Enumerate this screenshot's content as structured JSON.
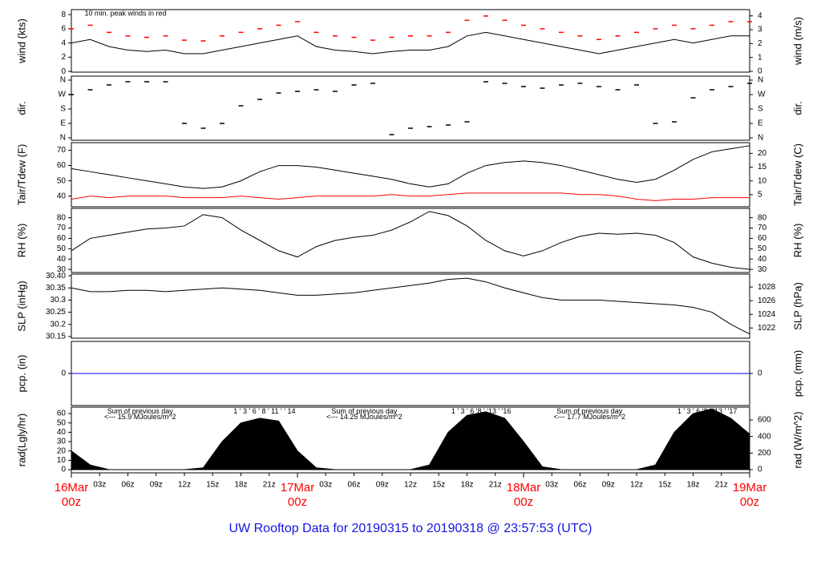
{
  "title": "UW Rooftop Data for 20190315  to  20190318 @ 23:57:53  (UTC)",
  "chart_data": [
    {
      "type": "line",
      "ylabel": "wind (kts)",
      "y2label": "wind (m/s)",
      "ylim": [
        -0.1,
        8.7
      ],
      "yticks": [
        0,
        2,
        4,
        6,
        8
      ],
      "y2lim": [
        -0.06,
        4.45
      ],
      "y2ticks": [
        0,
        1,
        2,
        3,
        4
      ],
      "annotations": [
        {
          "text": "10 min. peak winds in red",
          "x": 1.4,
          "y": 8.1,
          "color": "#ff0000"
        }
      ],
      "x": [
        0,
        2,
        4,
        6,
        8,
        10,
        12,
        14,
        16,
        18,
        20,
        22,
        24,
        26,
        28,
        30,
        32,
        34,
        36,
        38,
        40,
        42,
        44,
        46,
        48,
        50,
        52,
        54,
        56,
        58,
        60,
        62,
        64,
        66,
        68,
        70,
        72
      ],
      "series": [
        {
          "name": "wind",
          "color": "#000000",
          "marker": "line",
          "values": [
            4,
            4.5,
            3.5,
            3,
            2.8,
            3,
            2.5,
            2.5,
            3,
            3.5,
            4,
            4.5,
            5,
            3.5,
            3,
            2.8,
            2.5,
            2.8,
            3,
            3,
            3.5,
            5,
            5.5,
            5,
            4.5,
            4,
            3.5,
            3,
            2.5,
            3,
            3.5,
            4,
            4.5,
            4,
            4.5,
            5,
            5
          ]
        },
        {
          "name": "peak",
          "color": "#ff0000",
          "marker": "dash",
          "values": [
            6,
            6.5,
            5.5,
            5,
            4.8,
            5,
            4.4,
            4.3,
            5,
            5.5,
            6,
            6.5,
            7,
            5.5,
            5,
            4.8,
            4.4,
            4.8,
            5,
            5,
            5.5,
            7.2,
            7.8,
            7.2,
            6.5,
            6,
            5.5,
            5,
            4.5,
            5,
            5.5,
            6,
            6.5,
            6,
            6.5,
            7,
            7
          ]
        }
      ]
    },
    {
      "type": "scatter",
      "ylabel": "dir.",
      "y2label": "dir.",
      "ylim": [
        -15,
        385
      ],
      "yticks": [
        {
          "value": 0,
          "label": "N"
        },
        {
          "value": 90,
          "label": "E"
        },
        {
          "value": 180,
          "label": "S"
        },
        {
          "value": 270,
          "label": "W"
        },
        {
          "value": 360,
          "label": "N"
        }
      ],
      "y2lim": [
        -15,
        385
      ],
      "y2ticks": [
        {
          "value": 0,
          "label": "N"
        },
        {
          "value": 90,
          "label": "E"
        },
        {
          "value": 180,
          "label": "S"
        },
        {
          "value": 270,
          "label": "W"
        },
        {
          "value": 360,
          "label": "N"
        }
      ],
      "x": [
        0,
        2,
        4,
        6,
        8,
        10,
        12,
        14,
        16,
        18,
        20,
        22,
        24,
        26,
        28,
        30,
        32,
        34,
        36,
        38,
        40,
        42,
        44,
        46,
        48,
        50,
        52,
        54,
        56,
        58,
        60,
        62,
        64,
        66,
        68,
        70,
        72
      ],
      "series": [
        {
          "name": "direction",
          "color": "#000000",
          "values": [
            270,
            300,
            330,
            350,
            350,
            350,
            90,
            60,
            90,
            200,
            240,
            280,
            290,
            300,
            290,
            330,
            340,
            20,
            60,
            70,
            80,
            100,
            350,
            340,
            320,
            310,
            330,
            340,
            320,
            300,
            330,
            90,
            100,
            250,
            300,
            320,
            340
          ]
        }
      ]
    },
    {
      "type": "line",
      "ylabel": "Tair/Tdew (F)",
      "y2label": "Tair/Tdew (C)",
      "ylim": [
        33,
        75
      ],
      "yticks": [
        40,
        50,
        60,
        70
      ],
      "y2lim": [
        0.6,
        23.9
      ],
      "y2ticks": [
        5,
        10,
        15,
        20
      ],
      "x": [
        0,
        2,
        4,
        6,
        8,
        10,
        12,
        14,
        16,
        18,
        20,
        22,
        24,
        26,
        28,
        30,
        32,
        34,
        36,
        38,
        40,
        42,
        44,
        46,
        48,
        50,
        52,
        54,
        56,
        58,
        60,
        62,
        64,
        66,
        68,
        70,
        72
      ],
      "series": [
        {
          "name": "Tair",
          "color": "#000000",
          "marker": "line",
          "values": [
            58,
            56,
            54,
            52,
            50,
            48,
            46,
            45,
            46,
            50,
            56,
            60,
            60,
            59,
            57,
            55,
            53,
            51,
            48,
            46,
            48,
            55,
            60,
            62,
            63,
            62,
            60,
            57,
            54,
            51,
            49,
            51,
            57,
            64,
            69,
            71,
            73
          ]
        },
        {
          "name": "Tdew",
          "color": "#ff0000",
          "marker": "line",
          "values": [
            38,
            40,
            39,
            40,
            40,
            40,
            39,
            39,
            39,
            40,
            39,
            38,
            39,
            40,
            40,
            40,
            40,
            41,
            40,
            40,
            41,
            42,
            42,
            42,
            42,
            42,
            42,
            41,
            41,
            40,
            38,
            37,
            38,
            38,
            39,
            39,
            39
          ]
        }
      ]
    },
    {
      "type": "line",
      "ylabel": "RH (%)",
      "y2label": "RH (%)",
      "ylim": [
        27,
        89
      ],
      "yticks": [
        30,
        40,
        50,
        60,
        70,
        80
      ],
      "y2lim": [
        27,
        89
      ],
      "y2ticks": [
        30,
        40,
        50,
        60,
        70,
        80
      ],
      "x": [
        0,
        2,
        4,
        6,
        8,
        10,
        12,
        14,
        16,
        18,
        20,
        22,
        24,
        26,
        28,
        30,
        32,
        34,
        36,
        38,
        40,
        42,
        44,
        46,
        48,
        50,
        52,
        54,
        56,
        58,
        60,
        62,
        64,
        66,
        68,
        70,
        72
      ],
      "series": [
        {
          "name": "RH",
          "color": "#000000",
          "marker": "line",
          "values": [
            48,
            60,
            63,
            66,
            69,
            70,
            72,
            83,
            80,
            68,
            58,
            48,
            42,
            52,
            58,
            61,
            63,
            68,
            76,
            86,
            82,
            72,
            58,
            48,
            43,
            48,
            56,
            62,
            65,
            64,
            65,
            63,
            56,
            42,
            36,
            32,
            30
          ]
        }
      ]
    },
    {
      "type": "line",
      "ylabel": "SLP (inHg)",
      "y2label": "SLP (hPa)",
      "ylim": [
        30.143,
        30.407
      ],
      "yticks": [
        30.15,
        30.2,
        30.25,
        30.3,
        30.35,
        {
          "value": 30.4,
          "label": "30.40"
        }
      ],
      "y2lim": [
        1020.5,
        1029.9
      ],
      "y2ticks": [
        1022,
        1024,
        1026,
        1028
      ],
      "x": [
        0,
        2,
        4,
        6,
        8,
        10,
        12,
        14,
        16,
        18,
        20,
        22,
        24,
        26,
        28,
        30,
        32,
        34,
        36,
        38,
        40,
        42,
        44,
        46,
        48,
        50,
        52,
        54,
        56,
        58,
        60,
        62,
        64,
        66,
        68,
        70,
        72
      ],
      "series": [
        {
          "name": "SLP",
          "color": "#000000",
          "marker": "line",
          "values": [
            30.35,
            30.335,
            30.335,
            30.34,
            30.34,
            30.335,
            30.34,
            30.345,
            30.35,
            30.345,
            30.34,
            30.33,
            30.32,
            30.32,
            30.325,
            30.33,
            30.34,
            30.35,
            30.36,
            30.37,
            30.385,
            30.39,
            30.375,
            30.35,
            30.33,
            30.31,
            30.3,
            30.3,
            30.3,
            30.295,
            30.29,
            30.285,
            30.28,
            30.27,
            30.25,
            30.2,
            30.16
          ]
        }
      ]
    },
    {
      "type": "line",
      "ylabel": "pcp. (in)",
      "y2label": "pcp. (mm)",
      "ylim": [
        -1,
        1
      ],
      "yticks": [
        0
      ],
      "y2lim": [
        -1,
        1
      ],
      "y2ticks": [
        0
      ],
      "x": [
        0,
        2,
        4,
        6,
        8,
        10,
        12,
        14,
        16,
        18,
        20,
        22,
        24,
        26,
        28,
        30,
        32,
        34,
        36,
        38,
        40,
        42,
        44,
        46,
        48,
        50,
        52,
        54,
        56,
        58,
        60,
        62,
        64,
        66,
        68,
        70,
        72
      ],
      "series": [
        {
          "name": "pcp",
          "color": "#0000ff",
          "marker": "line",
          "values": [
            0,
            0,
            0,
            0,
            0,
            0,
            0,
            0,
            0,
            0,
            0,
            0,
            0,
            0,
            0,
            0,
            0,
            0,
            0,
            0,
            0,
            0,
            0,
            0,
            0,
            0,
            0,
            0,
            0,
            0,
            0,
            0,
            0,
            0,
            0,
            0,
            0
          ]
        }
      ]
    },
    {
      "type": "area",
      "ylabel": "rad(Lgly/hr)",
      "y2label": "rad (W/m^2)",
      "ylim": [
        -3.4,
        66.9
      ],
      "yticks": [
        0,
        10,
        20,
        30,
        40,
        50,
        60
      ],
      "y2lim": [
        -39,
        755
      ],
      "y2ticks": [
        0,
        200,
        400,
        600
      ],
      "annotations": [
        {
          "text": "Sum of previous day",
          "x": 7.3,
          "y": 62,
          "color": "#a020f0"
        },
        {
          "text": "<--- 15.9 MJoules/m^2",
          "x": 7.3,
          "y": 56,
          "color": "#a020f0"
        },
        {
          "text": "1 ' 3 ' 6 ' 8 ' 11 ' ' 14",
          "x": 20.5,
          "y": 62,
          "color": "#a020f0"
        },
        {
          "text": "Sum of previous day",
          "x": 31.1,
          "y": 62,
          "color": "#a020f0"
        },
        {
          "text": "<--- 14.25 MJoules/m^2",
          "x": 31.1,
          "y": 56,
          "color": "#a020f0"
        },
        {
          "text": "1 ' 3 ' 6 '8 ' '13 ' '16",
          "x": 43.5,
          "y": 62,
          "color": "#a020f0"
        },
        {
          "text": "Sum of previous day",
          "x": 55,
          "y": 62,
          "color": "#a020f0"
        },
        {
          "text": "<--- 17.7 MJoules/m^2",
          "x": 55,
          "y": 56,
          "color": "#a020f0"
        },
        {
          "text": "1 ' 3 ' 6 '8 ' '13 ' '17",
          "x": 67.5,
          "y": 62,
          "color": "#a020f0"
        }
      ],
      "x": [
        0,
        2,
        4,
        6,
        8,
        10,
        12,
        14,
        16,
        18,
        20,
        22,
        24,
        26,
        28,
        30,
        32,
        34,
        36,
        38,
        40,
        42,
        44,
        46,
        48,
        50,
        52,
        54,
        56,
        58,
        60,
        62,
        64,
        66,
        68,
        70,
        72
      ],
      "series": [
        {
          "name": "rad",
          "color": "#000000",
          "values": [
            20,
            5,
            0,
            0,
            0,
            0,
            0,
            2,
            30,
            50,
            55,
            52,
            20,
            2,
            0,
            0,
            0,
            0,
            0,
            5,
            40,
            58,
            62,
            55,
            30,
            3,
            0,
            0,
            0,
            0,
            0,
            5,
            40,
            60,
            65,
            55,
            38
          ]
        }
      ],
      "xlim": [
        0,
        72
      ],
      "xticks": [
        {
          "value": 3,
          "label": "03z"
        },
        {
          "value": 6,
          "label": "06z"
        },
        {
          "value": 9,
          "label": "09z"
        },
        {
          "value": 12,
          "label": "12z"
        },
        {
          "value": 15,
          "label": "15z"
        },
        {
          "value": 18,
          "label": "18z"
        },
        {
          "value": 21,
          "label": "21z"
        },
        {
          "value": 27,
          "label": "03z"
        },
        {
          "value": 30,
          "label": "06z"
        },
        {
          "value": 33,
          "label": "09z"
        },
        {
          "value": 36,
          "label": "12z"
        },
        {
          "value": 39,
          "label": "15z"
        },
        {
          "value": 42,
          "label": "18z"
        },
        {
          "value": 45,
          "label": "21z"
        },
        {
          "value": 51,
          "label": "03z"
        },
        {
          "value": 54,
          "label": "06z"
        },
        {
          "value": 57,
          "label": "09z"
        },
        {
          "value": 60,
          "label": "12z"
        },
        {
          "value": 63,
          "label": "15z"
        },
        {
          "value": 66,
          "label": "18z"
        },
        {
          "value": 69,
          "label": "21z"
        }
      ],
      "xticks_major": [
        {
          "value": 0,
          "label": "16Mar",
          "sublabel": "00z"
        },
        {
          "value": 24,
          "label": "17Mar",
          "sublabel": "00z"
        },
        {
          "value": 48,
          "label": "18Mar",
          "sublabel": "00z"
        },
        {
          "value": 72,
          "label": "19Mar",
          "sublabel": "00z"
        }
      ]
    }
  ]
}
